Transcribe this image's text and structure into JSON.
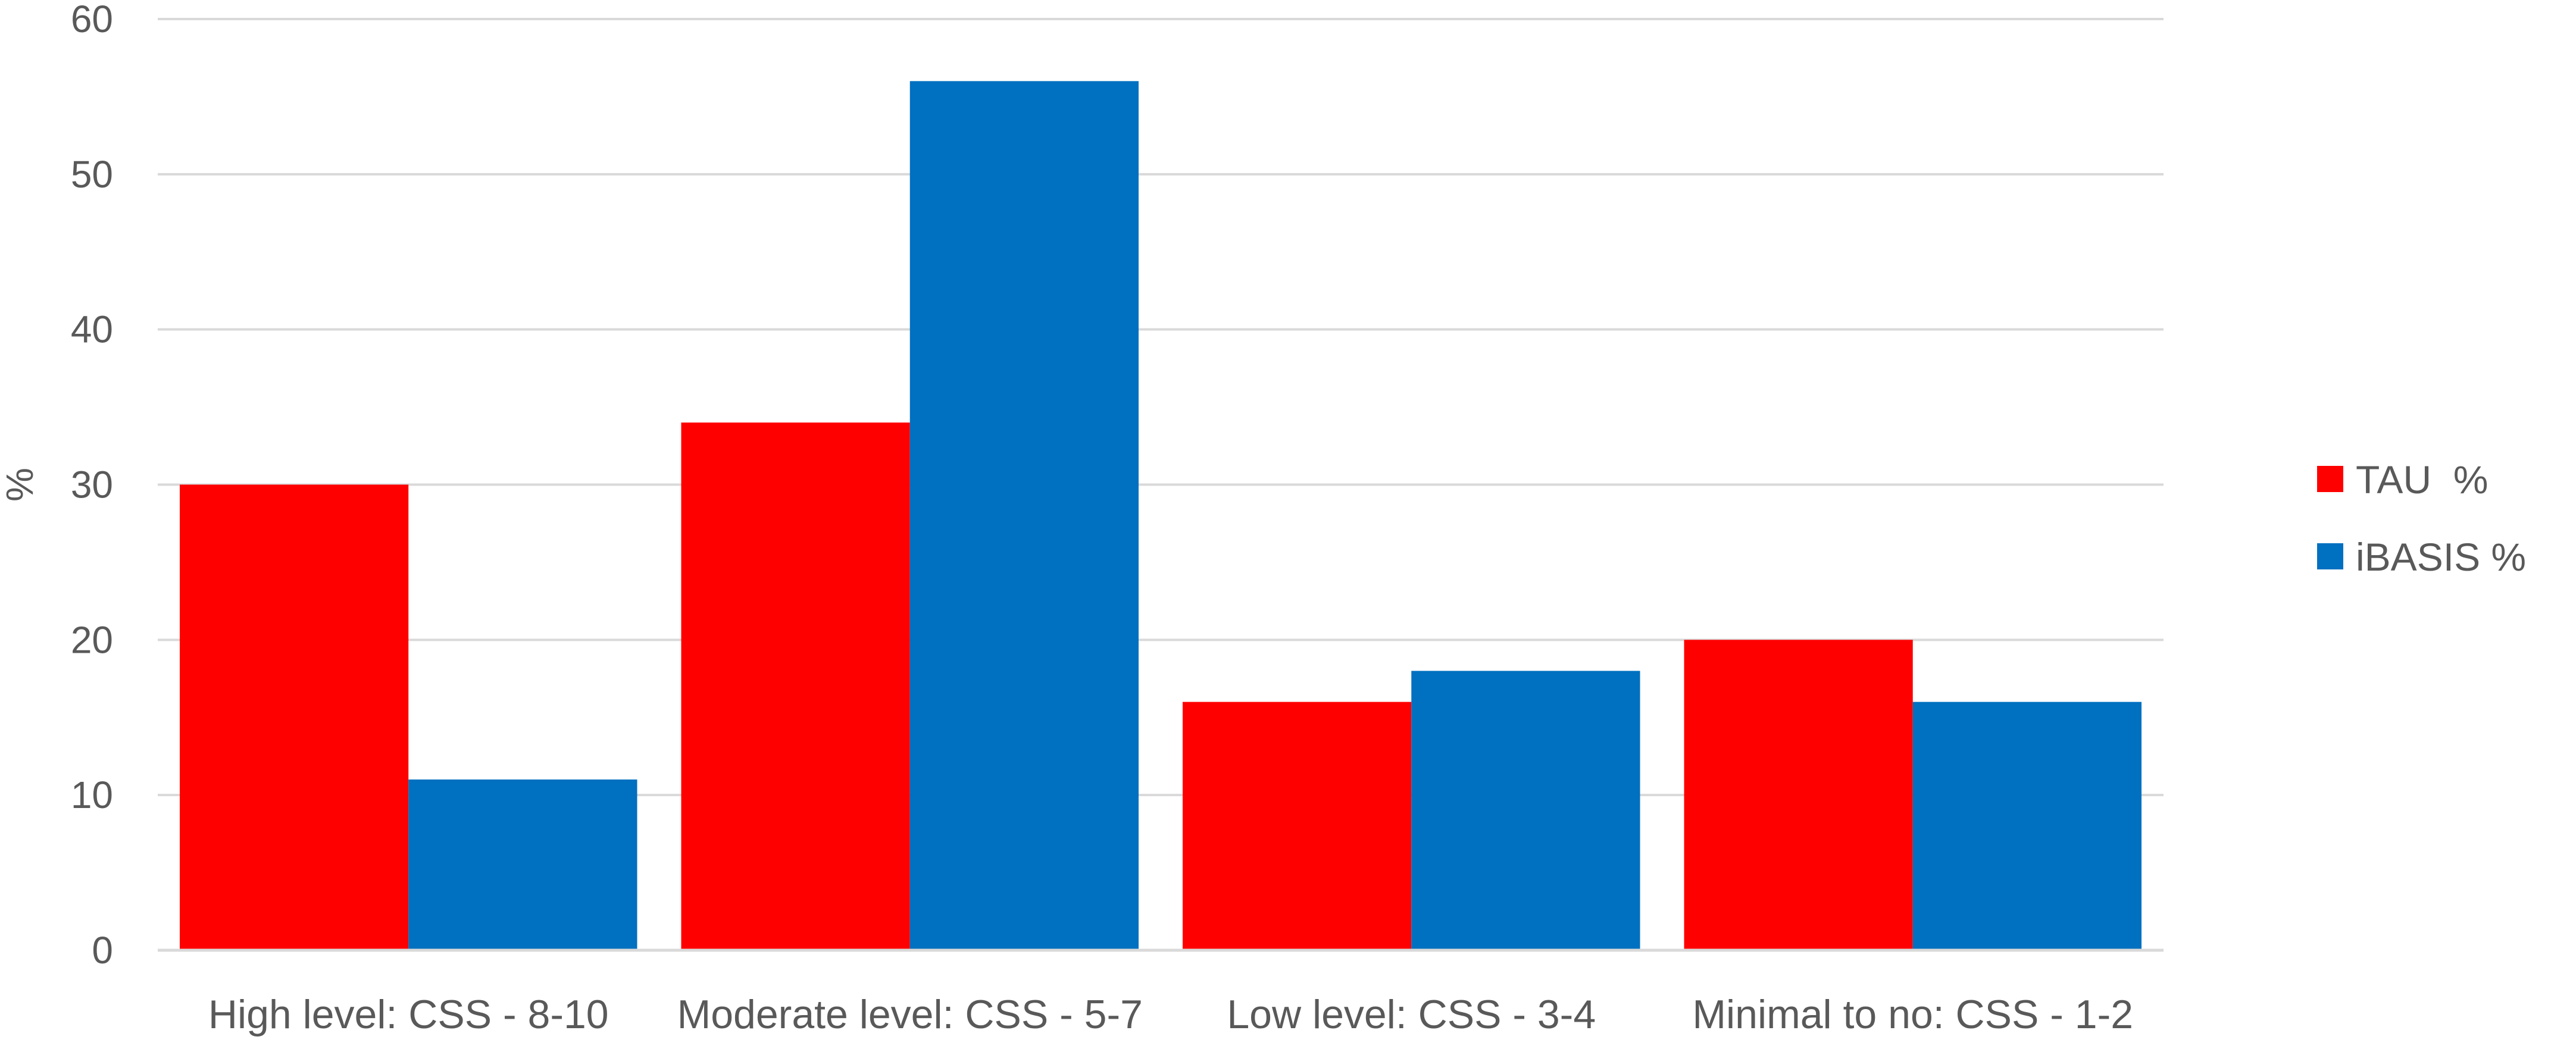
{
  "chart_data": {
    "type": "bar",
    "title": "",
    "xlabel": "",
    "ylabel": "%",
    "ylim": [
      0,
      60
    ],
    "yticks": [
      0,
      10,
      20,
      30,
      40,
      50,
      60
    ],
    "grid": true,
    "legend_position": "right",
    "categories": [
      "High level: CSS - 8-10",
      "Moderate level: CSS - 5-7",
      "Low level: CSS - 3-4",
      "Minimal to no: CSS - 1-2"
    ],
    "series": [
      {
        "name": "TAU  %",
        "color": "#ff0000",
        "values": [
          30,
          34,
          16,
          20
        ]
      },
      {
        "name": "iBASIS %",
        "color": "#0070c0",
        "values": [
          11,
          56,
          18,
          16
        ]
      }
    ]
  }
}
